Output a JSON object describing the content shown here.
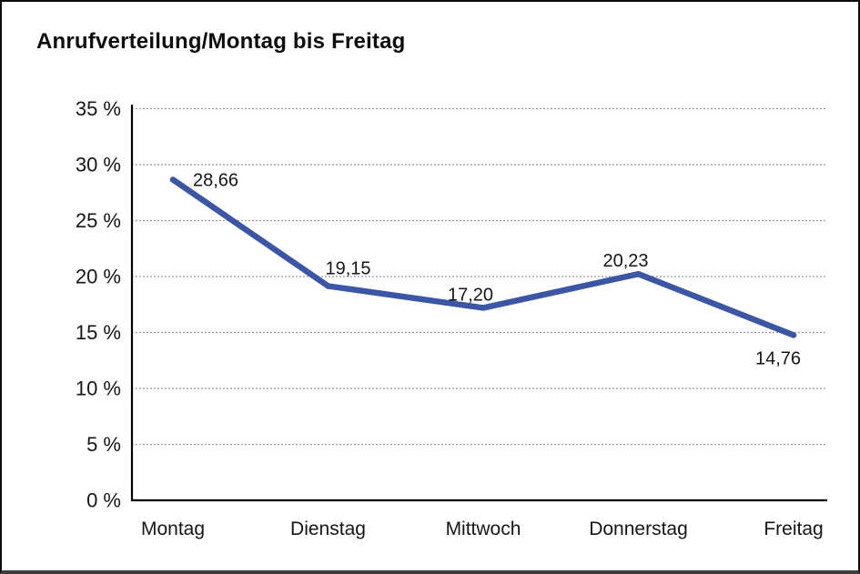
{
  "page": {
    "title": "Anrufverteilung/Montag bis Freitag"
  },
  "chart_data": {
    "type": "line",
    "title": "Anrufverteilung/Montag bis Freitag",
    "categories": [
      "Montag",
      "Dienstag",
      "Mittwoch",
      "Donnerstag",
      "Freitag"
    ],
    "series": [
      {
        "name": "Anrufverteilung",
        "values": [
          28.66,
          19.15,
          17.2,
          20.23,
          14.76
        ]
      }
    ],
    "data_labels": [
      "28,66",
      "19,15",
      "17,20",
      "20,23",
      "14,76"
    ],
    "data_label_positions": [
      "right",
      "above-start",
      "above",
      "above",
      "below"
    ],
    "xlabel": "",
    "ylabel": "",
    "ylim": [
      0,
      35
    ],
    "ytick_step": 5,
    "ytick_labels": [
      "0 %",
      "5 %",
      "10 %",
      "15 %",
      "20 %",
      "25 %",
      "30 %",
      "35 %"
    ],
    "grid": "horizontal-dotted",
    "legend_position": "none",
    "colors": {
      "line": "#3A56A4",
      "axis": "#000000",
      "gridline": "#7f7f7f",
      "text": "#161616"
    }
  }
}
